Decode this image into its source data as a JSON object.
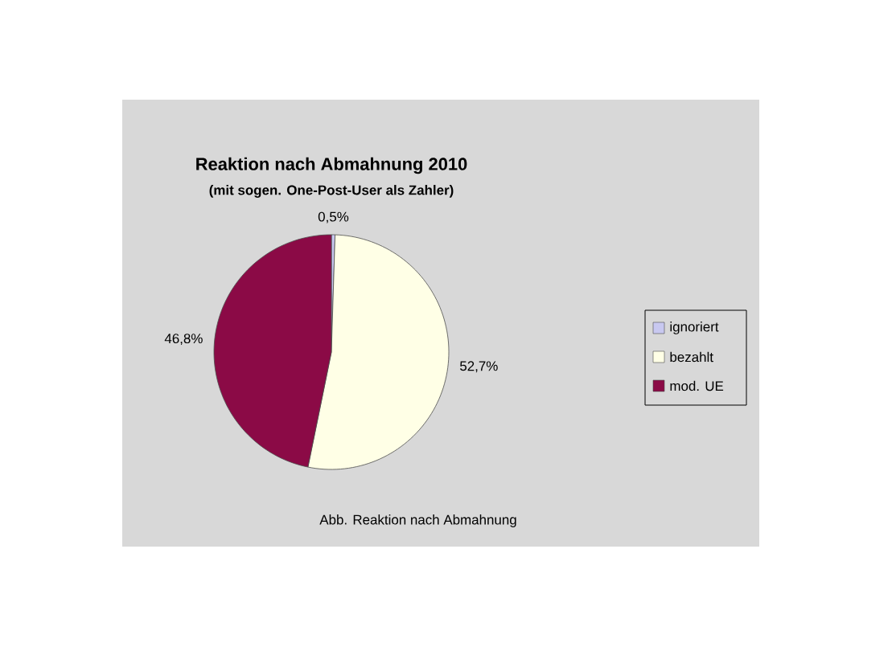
{
  "chart_data": {
    "type": "pie",
    "title": "Reaktion nach Abmahnung 2010",
    "subtitle": "(mit sogen. One-Post-User als Zahler)",
    "categories": [
      "ignoriert",
      "bezahlt",
      "mod. UE"
    ],
    "values": [
      0.5,
      52.7,
      46.8
    ],
    "value_labels": [
      "0,5%",
      "52,7%",
      "46,8%"
    ],
    "colors": [
      "#c8c8f0",
      "#ffffe6",
      "#8b0a46"
    ],
    "legend": "right",
    "annotations": [
      "Abb. Reaktion nach Abmahnung"
    ]
  }
}
